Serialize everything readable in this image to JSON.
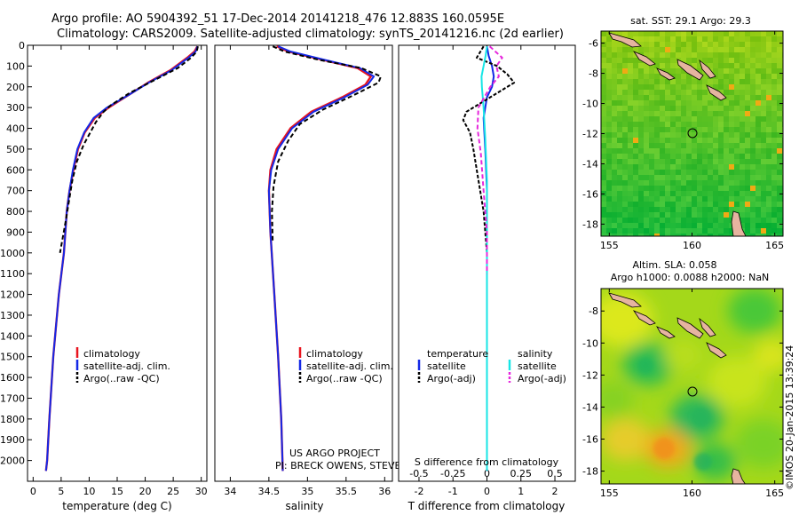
{
  "header": {
    "line1": "Argo profile: AO 5904392_51 17-Dec-2014 20141218_476 12.883S 160.0595E",
    "line2": "Climatology: CARS2009. Satellite-adjusted climatology: synTS_20141216.nc (2d earlier)"
  },
  "colors": {
    "climatology": "#e8141e",
    "satellite": "#1428e6",
    "argo": "#000000",
    "salinity_satellite": "#18e6e6",
    "salinity_argo": "#e628dc"
  },
  "credits": {
    "project": "US ARGO PROJECT",
    "pi": "PI: BRECK OWENS, STEVE JAYNE, P.E. ROBBINS",
    "stamp": "©IMOS 20-Jan-2015 13:39:24"
  },
  "chart_data": [
    {
      "type": "line",
      "id": "temperature",
      "xlabel": "temperature (deg C)",
      "ylabel": "",
      "xlim": [
        -1,
        31
      ],
      "ylim": [
        2100,
        0
      ],
      "xticks": [
        0,
        5,
        10,
        15,
        20,
        25,
        30
      ],
      "yticks": [
        0,
        100,
        200,
        300,
        400,
        500,
        600,
        700,
        800,
        900,
        1000,
        1100,
        1200,
        1300,
        1400,
        1500,
        1600,
        1700,
        1800,
        1900,
        2000
      ],
      "legend": [
        "climatology",
        "satellite-adj. clim.",
        "Argo(..raw -QC)"
      ],
      "series": [
        {
          "name": "climatology",
          "x": [
            29.3,
            28.8,
            27.5,
            24.5,
            20.5,
            17.0,
            13.5,
            11.0,
            9.2,
            8.0,
            7.2,
            6.5,
            6.0,
            5.5,
            4.6,
            3.6,
            2.9,
            2.5,
            2.3
          ],
          "y": [
            5,
            30,
            60,
            120,
            180,
            240,
            300,
            350,
            420,
            500,
            600,
            700,
            800,
            1000,
            1200,
            1500,
            1800,
            2000,
            2050
          ]
        },
        {
          "name": "satellite-adj. clim.",
          "x": [
            29.3,
            29.0,
            27.7,
            24.7,
            20.6,
            17.0,
            13.2,
            10.8,
            9.1,
            7.9,
            7.1,
            6.5,
            6.0,
            5.5,
            4.6,
            3.6,
            2.9,
            2.5,
            2.3
          ],
          "y": [
            5,
            30,
            60,
            120,
            180,
            240,
            300,
            350,
            420,
            500,
            600,
            700,
            800,
            1000,
            1200,
            1500,
            1800,
            2000,
            2050
          ]
        },
        {
          "name": "Argo(..raw -QC)",
          "x": [
            29.4,
            29.2,
            28.2,
            25.8,
            21.5,
            17.2,
            13.8,
            12.6,
            11.2,
            10.2,
            9.0,
            7.8,
            7.0,
            6.4,
            5.8,
            4.8
          ],
          "y": [
            5,
            30,
            60,
            110,
            170,
            230,
            290,
            320,
            370,
            420,
            480,
            560,
            650,
            750,
            850,
            1000
          ]
        }
      ]
    },
    {
      "type": "line",
      "id": "salinity",
      "xlabel": "salinity",
      "ylabel": "",
      "xlim": [
        33.8,
        36.1
      ],
      "ylim": [
        2100,
        0
      ],
      "xticks": [
        34,
        34.5,
        35,
        35.5,
        36
      ],
      "legend": [
        "climatology",
        "satellite-adj. clim.",
        "Argo(..raw -QC)"
      ],
      "series": [
        {
          "name": "climatology",
          "x": [
            34.6,
            34.75,
            35.2,
            35.65,
            35.82,
            35.75,
            35.45,
            35.05,
            34.78,
            34.6,
            34.52,
            34.5,
            34.52,
            34.57,
            34.62,
            34.66,
            34.68
          ],
          "y": [
            5,
            30,
            70,
            110,
            150,
            190,
            250,
            320,
            400,
            500,
            600,
            700,
            900,
            1200,
            1500,
            1800,
            2050
          ]
        },
        {
          "name": "satellite-adj. clim.",
          "x": [
            34.62,
            34.78,
            35.22,
            35.68,
            35.86,
            35.78,
            35.48,
            35.08,
            34.8,
            34.62,
            34.53,
            34.5,
            34.52,
            34.57,
            34.62,
            34.66,
            34.68
          ],
          "y": [
            5,
            30,
            70,
            110,
            150,
            190,
            250,
            320,
            400,
            500,
            600,
            700,
            900,
            1200,
            1500,
            1800,
            2050
          ]
        },
        {
          "name": "Argo(..raw -QC)",
          "x": [
            34.55,
            34.7,
            35.15,
            35.7,
            35.95,
            35.92,
            35.6,
            35.2,
            34.9,
            34.75,
            34.62,
            34.56,
            34.54,
            34.55
          ],
          "y": [
            5,
            30,
            70,
            110,
            150,
            180,
            240,
            310,
            380,
            460,
            560,
            680,
            800,
            950
          ]
        }
      ]
    },
    {
      "type": "line",
      "id": "difference",
      "xlabel": "T difference from climatology",
      "x2label": "S difference from climatology",
      "xlim": [
        -2.6,
        2.6
      ],
      "ylim": [
        2100,
        0
      ],
      "xticks": [
        -2,
        -1,
        0,
        1,
        2
      ],
      "x2ticks": [
        "-0.5",
        "-0.25",
        "0",
        "0.25",
        "0.5"
      ],
      "legend_headers": [
        "temperature",
        "salinity"
      ],
      "legend": [
        "satellite",
        "Argo(-adj)",
        "satellite",
        "Argo(-adj)"
      ],
      "series": [
        {
          "name": "temperature satellite",
          "x": [
            0.0,
            0.05,
            0.15,
            0.2,
            0.15,
            0.0,
            -0.1,
            -0.05,
            0.0,
            0.0,
            0.0
          ],
          "y": [
            5,
            50,
            100,
            150,
            200,
            250,
            350,
            500,
            700,
            1000,
            2050
          ]
        },
        {
          "name": "temperature Argo(-adj)",
          "x": [
            -0.1,
            -0.3,
            0.3,
            0.6,
            0.8,
            0.3,
            -0.6,
            -0.7,
            -0.5,
            -0.4,
            -0.3,
            -0.1,
            0.0
          ],
          "y": [
            5,
            60,
            100,
            140,
            180,
            230,
            320,
            360,
            420,
            500,
            600,
            800,
            1000
          ]
        },
        {
          "name": "salinity satellite",
          "x": [
            0.0,
            -0.04,
            -0.1,
            -0.16,
            -0.15,
            -0.1,
            -0.05,
            0.0,
            0.0,
            0.0
          ],
          "y": [
            5,
            50,
            100,
            150,
            200,
            300,
            450,
            650,
            1000,
            2050
          ]
        },
        {
          "name": "salinity Argo(-adj)",
          "x": [
            0.08,
            0.45,
            0.28,
            0.35,
            0.1,
            -0.25,
            -0.28,
            -0.18,
            -0.1,
            0.0,
            0.0
          ],
          "y": [
            5,
            60,
            100,
            150,
            200,
            300,
            400,
            520,
            700,
            900,
            1100
          ]
        }
      ]
    },
    {
      "type": "heatmap",
      "id": "sst-map",
      "title": "sat. SST: 29.1 Argo: 29.3",
      "xticks": [
        155,
        160,
        165
      ],
      "yticks": [
        -6,
        -8,
        -10,
        -12,
        -14,
        -16,
        -18
      ],
      "xlim": [
        154.5,
        165.5
      ],
      "ylim": [
        -18.8,
        -5.2
      ],
      "argo_position": [
        160.06,
        -12.88
      ]
    },
    {
      "type": "heatmap",
      "id": "sla-map",
      "title1": "Altim. SLA: 0.058",
      "title2": "Argo h1000: 0.0088 h2000: NaN",
      "xticks": [
        155,
        160,
        165
      ],
      "yticks": [
        -8,
        -10,
        -12,
        -14,
        -16,
        -18
      ],
      "xlim": [
        154.5,
        165.5
      ],
      "ylim": [
        -18.8,
        -6.6
      ],
      "argo_position": [
        160.06,
        -12.88
      ]
    }
  ]
}
